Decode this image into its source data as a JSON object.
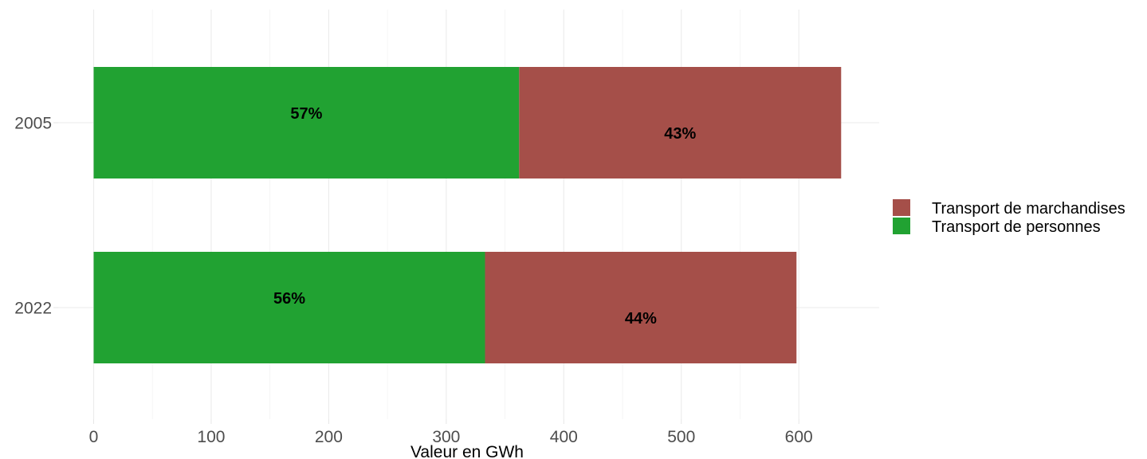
{
  "chart_data": {
    "type": "bar",
    "orientation": "horizontal",
    "stacked": true,
    "title": "",
    "xlabel": "Valeur en GWh",
    "ylabel": "",
    "categories": [
      "2005",
      "2022"
    ],
    "xlim": [
      0,
      670
    ],
    "xticks": [
      0,
      100,
      200,
      300,
      400,
      500,
      600
    ],
    "grid": true,
    "legend_position": "right",
    "series": [
      {
        "name": "Transport de personnes",
        "color": "#21a232",
        "values": [
          362,
          333
        ],
        "labels": [
          "57%",
          "56%"
        ]
      },
      {
        "name": "Transport de marchandises",
        "color": "#a54f49",
        "values": [
          274,
          265
        ],
        "labels": [
          "43%",
          "44%"
        ]
      }
    ],
    "legend_order": [
      "Transport de marchandises",
      "Transport de personnes"
    ]
  }
}
